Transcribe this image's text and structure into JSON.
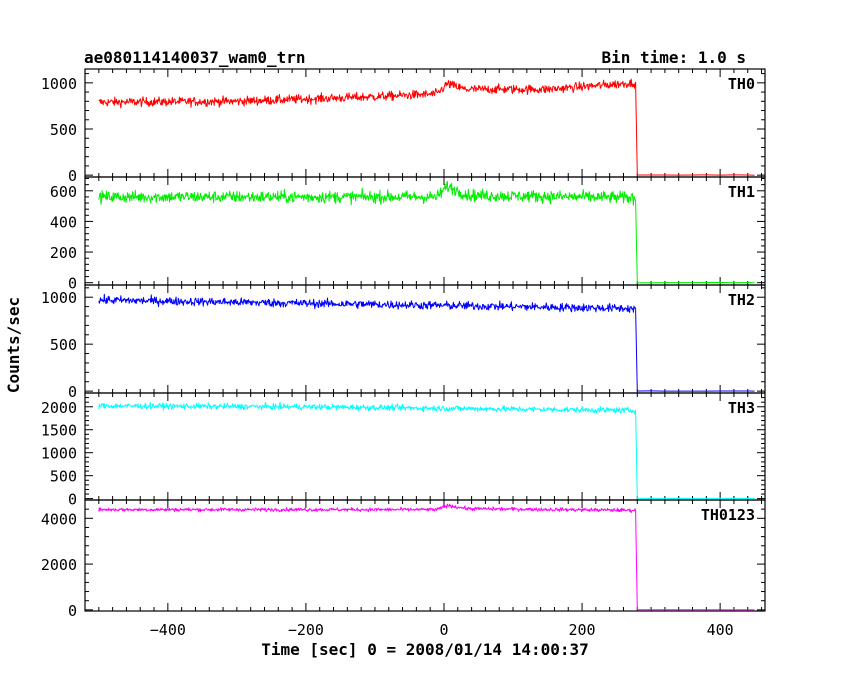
{
  "header": {
    "title": "ae080114140037_wam0_trn",
    "bin_time": "Bin time: 1.0 s"
  },
  "axes": {
    "xlabel": "Time [sec] 0 = 2008/01/14 14:00:37",
    "ylabel": "Counts/sec"
  },
  "chart_data": {
    "type": "line",
    "x_range": [
      -520,
      465
    ],
    "x_ticks": [
      -400,
      -200,
      0,
      200,
      400
    ],
    "x_tick_labels": [
      "−400",
      "−200",
      "0",
      "200",
      "400"
    ],
    "panels": [
      {
        "name": "TH0",
        "color": "#ff0000",
        "ylim": [
          -20,
          1150
        ],
        "y_ticks": [
          0,
          500,
          1000
        ],
        "y_tick_labels": [
          "0",
          "500",
          "1000"
        ],
        "noise": 35,
        "trend": [
          [
            -500,
            790
          ],
          [
            -300,
            800
          ],
          [
            -100,
            850
          ],
          [
            -10,
            880
          ],
          [
            5,
            990
          ],
          [
            30,
            930
          ],
          [
            150,
            930
          ],
          [
            275,
            1000
          ]
        ],
        "drop_at": 278,
        "end_x": 450
      },
      {
        "name": "TH1",
        "color": "#00ee00",
        "ylim": [
          -15,
          690
        ],
        "y_ticks": [
          0,
          200,
          400,
          600
        ],
        "y_tick_labels": [
          "0",
          "200",
          "400",
          "600"
        ],
        "noise": 28,
        "trend": [
          [
            -500,
            560
          ],
          [
            -10,
            560
          ],
          [
            5,
            630
          ],
          [
            35,
            570
          ],
          [
            275,
            555
          ]
        ],
        "drop_at": 278,
        "end_x": 450
      },
      {
        "name": "TH2",
        "color": "#0000ff",
        "ylim": [
          -20,
          1130
        ],
        "y_ticks": [
          0,
          500,
          1000
        ],
        "y_tick_labels": [
          "0",
          "500",
          "1000"
        ],
        "noise": 32,
        "trend": [
          [
            -500,
            970
          ],
          [
            -200,
            935
          ],
          [
            275,
            880
          ]
        ],
        "drop_at": 278,
        "end_x": 450
      },
      {
        "name": "TH3",
        "color": "#00ffff",
        "ylim": [
          -30,
          2300
        ],
        "y_ticks": [
          0,
          500,
          1000,
          1500,
          2000
        ],
        "y_tick_labels": [
          "0",
          "500",
          "1000",
          "1500",
          "2000"
        ],
        "noise": 45,
        "trend": [
          [
            -500,
            2020
          ],
          [
            -200,
            2000
          ],
          [
            275,
            1920
          ]
        ],
        "drop_at": 278,
        "end_x": 450
      },
      {
        "name": "TH0123",
        "color": "#ff00ff",
        "ylim": [
          -50,
          4800
        ],
        "y_ticks": [
          0,
          2000,
          4000
        ],
        "y_tick_labels": [
          "0",
          "2000",
          "4000"
        ],
        "noise": 55,
        "trend": [
          [
            -500,
            4380
          ],
          [
            -10,
            4380
          ],
          [
            5,
            4560
          ],
          [
            35,
            4420
          ],
          [
            275,
            4350
          ]
        ],
        "drop_at": 278,
        "end_x": 450
      }
    ]
  }
}
